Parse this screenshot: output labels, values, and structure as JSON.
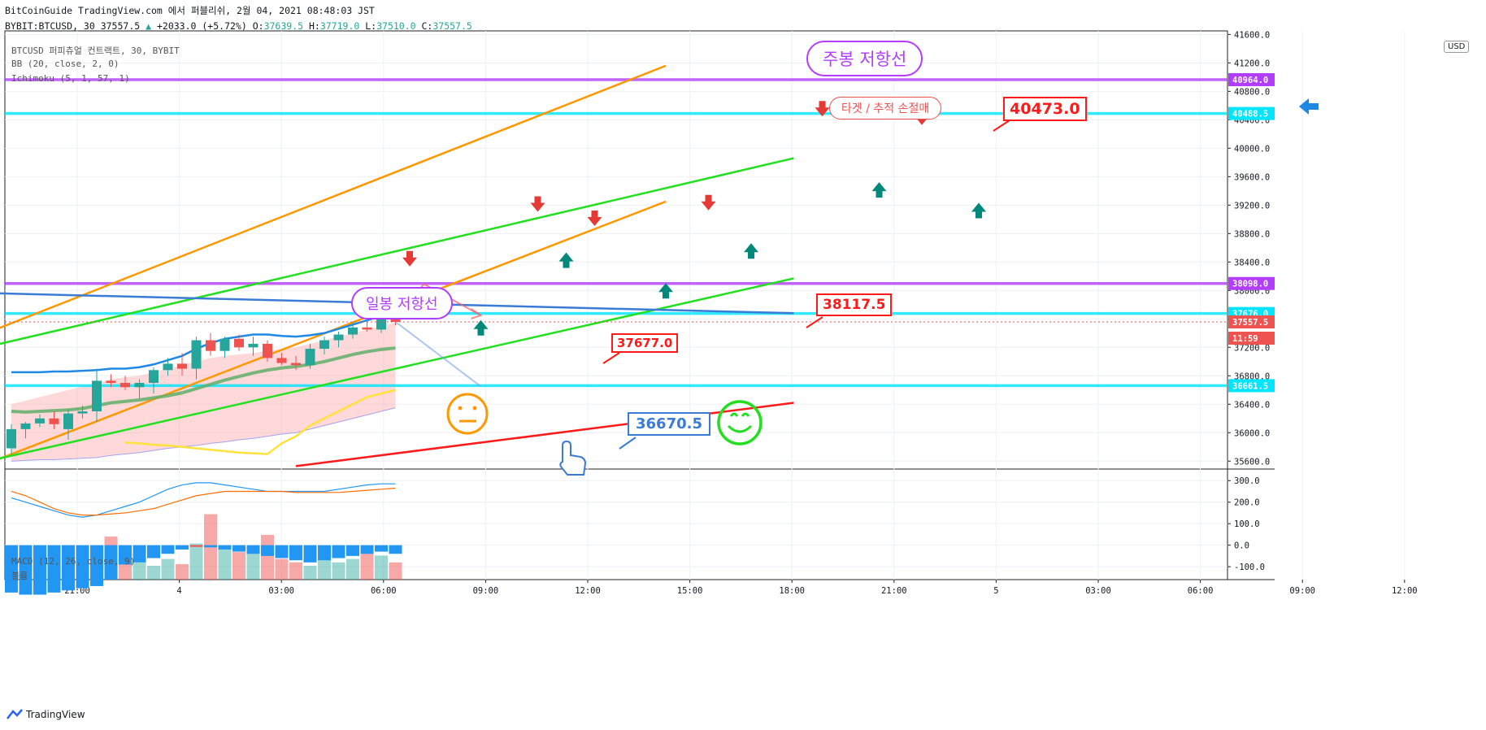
{
  "header": {
    "line1": "BitCoinGuide TradingView.com 에서 퍼블리쉬, 2월 04, 2021 08:48:03 JST",
    "symbol": "BYBIT:BTCUSD, 30 37557.5",
    "change": "+2033.0 (+5.72%)",
    "o_label": "O:",
    "o": "37639.5",
    "h_label": "H:",
    "h": "37719.0",
    "l_label": "L:",
    "l": "37510.0",
    "c_label": "C:",
    "c": "37557.5"
  },
  "legend": {
    "title": "BTCUSD 퍼피츄얼 컨트랙트, 30, BYBIT",
    "bb": "BB (20, close, 2, 0)",
    "ichimoku": "Ichimoku (5, 1, 57, 1)",
    "macd": "MACD (12, 26, close, 9)",
    "volume": "볼륨"
  },
  "currency": "USD",
  "footer": {
    "brand": "TradingView"
  },
  "annotations": {
    "weekly_resistance": "주봉 저항선",
    "daily_resistance": "일봉 저항선",
    "target": "타겟 / 추적 손절매",
    "label_40473": "40473.0",
    "label_38117": "38117.5",
    "label_37677": "37677.0",
    "label_36670": "36670.5"
  },
  "colors": {
    "up": "#26a69a",
    "down": "#ef5350",
    "purple": "#b23cff",
    "cyan": "#00e5ff",
    "orange": "#ff9800",
    "green": "#22e01f",
    "red": "#ff1a1a",
    "blue": "#3a7bd5"
  },
  "chart_data": [
    {
      "type": "candlestick",
      "title": "BTCUSD 퍼피츄얼 컨트랙트, 30, BYBIT",
      "ylim": [
        35500,
        41650
      ],
      "yticks": [
        35600,
        36000,
        36400,
        36800,
        37200,
        37600,
        38000,
        38400,
        38800,
        39200,
        39600,
        40000,
        40400,
        40800,
        41200,
        41600
      ],
      "xticks": [
        "21:00",
        "4",
        "03:00",
        "06:00",
        "09:00",
        "12:00",
        "15:00",
        "18:00",
        "21:00",
        "5",
        "03:00",
        "06:00",
        "09:00",
        "12:00"
      ],
      "price_labels": [
        {
          "value": "40964.0",
          "color": "#b23cff"
        },
        {
          "value": "40488.5",
          "color": "#00e5ff"
        },
        {
          "value": "38098.0",
          "color": "#b23cff"
        },
        {
          "value": "37676.0",
          "color": "#00e5ff"
        },
        {
          "value": "37557.5",
          "color": "#ef5350"
        },
        {
          "value": "11:59",
          "color": "#ef5350"
        },
        {
          "value": "36661.5",
          "color": "#00e5ff"
        }
      ],
      "candles": [
        {
          "o": 35780,
          "h": 36120,
          "l": 35700,
          "c": 36050
        },
        {
          "o": 36050,
          "h": 36150,
          "l": 35920,
          "c": 36130
        },
        {
          "o": 36130,
          "h": 36260,
          "l": 36080,
          "c": 36200
        },
        {
          "o": 36200,
          "h": 36300,
          "l": 36050,
          "c": 36120
        },
        {
          "o": 36050,
          "h": 36330,
          "l": 35900,
          "c": 36270
        },
        {
          "o": 36270,
          "h": 36380,
          "l": 36200,
          "c": 36300
        },
        {
          "o": 36300,
          "h": 36900,
          "l": 36150,
          "c": 36730
        },
        {
          "o": 36730,
          "h": 36820,
          "l": 36640,
          "c": 36700
        },
        {
          "o": 36700,
          "h": 36800,
          "l": 36600,
          "c": 36640
        },
        {
          "o": 36640,
          "h": 36750,
          "l": 36480,
          "c": 36700
        },
        {
          "o": 36700,
          "h": 36920,
          "l": 36550,
          "c": 36880
        },
        {
          "o": 36880,
          "h": 37050,
          "l": 36800,
          "c": 36970
        },
        {
          "o": 36970,
          "h": 37120,
          "l": 36800,
          "c": 36900
        },
        {
          "o": 36900,
          "h": 37350,
          "l": 36750,
          "c": 37300
        },
        {
          "o": 37300,
          "h": 37400,
          "l": 37080,
          "c": 37150
        },
        {
          "o": 37150,
          "h": 37350,
          "l": 37050,
          "c": 37320
        },
        {
          "o": 37320,
          "h": 37380,
          "l": 37150,
          "c": 37200
        },
        {
          "o": 37200,
          "h": 37350,
          "l": 37080,
          "c": 37250
        },
        {
          "o": 37250,
          "h": 37300,
          "l": 37000,
          "c": 37050
        },
        {
          "o": 37050,
          "h": 37120,
          "l": 36950,
          "c": 36980
        },
        {
          "o": 36980,
          "h": 37080,
          "l": 36880,
          "c": 36950
        },
        {
          "o": 36950,
          "h": 37250,
          "l": 36900,
          "c": 37180
        },
        {
          "o": 37180,
          "h": 37350,
          "l": 37100,
          "c": 37300
        },
        {
          "o": 37300,
          "h": 37420,
          "l": 37200,
          "c": 37380
        },
        {
          "o": 37380,
          "h": 37560,
          "l": 37320,
          "c": 37480
        },
        {
          "o": 37480,
          "h": 37600,
          "l": 37420,
          "c": 37450
        },
        {
          "o": 37450,
          "h": 37700,
          "l": 37400,
          "c": 37640
        },
        {
          "o": 37639.5,
          "h": 37719,
          "l": 37510,
          "c": 37557.5
        }
      ],
      "horizontal_levels": [
        {
          "value": 40964,
          "color": "#b23cff"
        },
        {
          "value": 40488.5,
          "color": "#00e5ff"
        },
        {
          "value": 38098,
          "color": "#b23cff"
        },
        {
          "value": 37676,
          "color": "#00e5ff"
        },
        {
          "value": 36661.5,
          "color": "#00e5ff"
        }
      ],
      "trend_lines": [
        {
          "color": "#ff9800",
          "from": [
            -1,
            37460
          ],
          "to": [
            46,
            41160
          ]
        },
        {
          "color": "#ff9800",
          "from": [
            -1,
            35620
          ],
          "to": [
            46,
            39250
          ]
        },
        {
          "color": "#22e01f",
          "from": [
            -1,
            37240
          ],
          "to": [
            55,
            39860
          ]
        },
        {
          "color": "#22e01f",
          "from": [
            -1,
            35630
          ],
          "to": [
            55,
            38170
          ]
        },
        {
          "color": "#3a7bd5",
          "from": [
            -1,
            37960
          ],
          "to": [
            55,
            37680
          ]
        },
        {
          "color": "#ff1a1a",
          "from": [
            20,
            35530
          ],
          "to": [
            55,
            36420
          ]
        }
      ],
      "bb_upper": [
        36850,
        36850,
        36850,
        36860,
        36860,
        36870,
        36880,
        36900,
        36900,
        36920,
        36960,
        37020,
        37080,
        37180,
        37260,
        37320,
        37350,
        37380,
        37380,
        37360,
        37350,
        37370,
        37400,
        37460,
        37520,
        37580,
        37640,
        37680
      ],
      "bb_middle": [
        36300,
        36290,
        36300,
        36310,
        36320,
        36340,
        36380,
        36420,
        36440,
        36460,
        36490,
        36520,
        36560,
        36620,
        36680,
        36740,
        36790,
        36840,
        36880,
        36910,
        36930,
        36960,
        37000,
        37050,
        37100,
        37140,
        37170,
        37190
      ],
      "cloud_upper": [
        36400,
        36450,
        36500,
        36550,
        36600,
        36650,
        36700,
        36750,
        36780,
        36800,
        36850,
        36900,
        36950,
        37000,
        37050,
        37080,
        37100,
        37120,
        37150,
        37180,
        37200,
        37250,
        37300,
        37350,
        37400,
        37450,
        37500,
        37550
      ],
      "cloud_lower": [
        35600,
        35610,
        35620,
        35620,
        35630,
        35640,
        35650,
        35680,
        35700,
        35720,
        35750,
        35780,
        35800,
        35820,
        35850,
        35870,
        35900,
        35920,
        35950,
        35980,
        36000,
        36050,
        36100,
        36150,
        36200,
        36250,
        36300,
        36350
      ],
      "lagging_line": [
        35860,
        35850,
        35830,
        35820,
        35800,
        35780,
        35760,
        35740,
        35720,
        35710,
        35700,
        35850,
        35950,
        36100,
        36200,
        36300,
        36400,
        36500,
        36550,
        36600
      ],
      "arrows": [
        {
          "dir": "down",
          "x": 28,
          "y": 38440
        },
        {
          "dir": "up",
          "x": 33,
          "y": 37480
        },
        {
          "dir": "down",
          "x": 37,
          "y": 39210
        },
        {
          "dir": "up",
          "x": 39,
          "y": 38430
        },
        {
          "dir": "down",
          "x": 41,
          "y": 39010
        },
        {
          "dir": "up",
          "x": 46,
          "y": 38000
        },
        {
          "dir": "down",
          "x": 49,
          "y": 39230
        },
        {
          "dir": "up",
          "x": 52,
          "y": 38560
        },
        {
          "dir": "down",
          "x": 57,
          "y": 40550
        },
        {
          "dir": "up",
          "x": 61,
          "y": 39420
        },
        {
          "dir": "down",
          "x": 64,
          "y": 40430
        },
        {
          "dir": "up",
          "x": 68,
          "y": 39130
        }
      ]
    },
    {
      "type": "bar",
      "title": "MACD (12, 26, close, 9)",
      "ylim": [
        -160,
        350
      ],
      "yticks": [
        -100,
        0,
        100,
        200,
        300
      ],
      "histogram": [
        -220,
        -230,
        -230,
        -220,
        -210,
        -200,
        -190,
        -160,
        -90,
        -80,
        -60,
        -40,
        -20,
        0,
        -10,
        -20,
        -30,
        -40,
        -50,
        -60,
        -70,
        -80,
        -70,
        -60,
        -50,
        -40,
        -30,
        -40
      ],
      "volume": [
        40,
        50,
        60,
        70,
        90,
        140,
        180,
        250,
        160,
        100,
        80,
        120,
        90,
        210,
        380,
        200,
        160,
        190,
        260,
        120,
        100,
        80,
        160,
        100,
        120,
        180,
        140,
        100
      ],
      "macd_line": [
        220,
        200,
        180,
        160,
        140,
        130,
        140,
        160,
        180,
        200,
        230,
        260,
        280,
        290,
        290,
        280,
        270,
        260,
        250,
        250,
        250,
        250,
        250,
        260,
        270,
        280,
        285,
        285
      ],
      "signal_line": [
        250,
        230,
        200,
        170,
        150,
        140,
        140,
        145,
        150,
        160,
        170,
        190,
        210,
        230,
        240,
        250,
        250,
        250,
        250,
        250,
        245,
        245,
        245,
        245,
        250,
        255,
        260,
        265
      ]
    }
  ]
}
